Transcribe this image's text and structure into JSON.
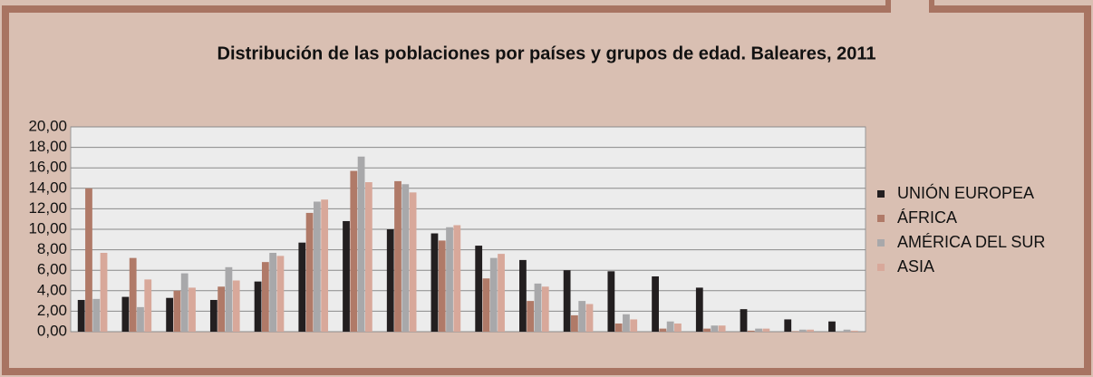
{
  "chart_data": {
    "type": "bar",
    "title": "Distribución de las poblaciones por países y grupos de edad. Baleares, 2011",
    "categories": [
      null,
      null,
      null,
      null,
      null,
      null,
      null,
      null,
      null,
      null,
      null,
      null,
      null,
      null,
      null,
      null,
      null,
      null
    ],
    "series": [
      {
        "name": "UNIÓN EUROPEA",
        "color": "#231f20",
        "values": [
          3.1,
          3.4,
          3.3,
          3.1,
          4.9,
          8.7,
          10.8,
          10.0,
          9.6,
          8.4,
          7.0,
          6.0,
          5.9,
          5.4,
          4.3,
          2.2,
          1.2,
          1.0
        ]
      },
      {
        "name": "ÁFRICA",
        "color": "#b07a68",
        "values": [
          14.0,
          7.2,
          4.0,
          4.4,
          6.8,
          11.6,
          15.7,
          14.7,
          8.9,
          5.2,
          3.0,
          1.6,
          0.8,
          0.3,
          0.3,
          0.1,
          0.05,
          0.0
        ]
      },
      {
        "name": "AMÉRICA DEL SUR",
        "color": "#a8a8aa",
        "values": [
          3.2,
          2.4,
          5.7,
          6.3,
          7.7,
          12.7,
          17.1,
          14.4,
          10.2,
          7.2,
          4.7,
          3.0,
          1.7,
          1.0,
          0.6,
          0.3,
          0.2,
          0.2
        ]
      },
      {
        "name": "ASIA",
        "color": "#d8a89a",
        "values": [
          7.7,
          5.1,
          4.3,
          5.0,
          7.4,
          12.9,
          14.6,
          13.6,
          10.4,
          7.6,
          4.4,
          2.7,
          1.2,
          0.8,
          0.6,
          0.3,
          0.2,
          0.1
        ]
      }
    ],
    "ylim": [
      0,
      20
    ],
    "yticks": [
      {
        "value": 0,
        "label": "0,00"
      },
      {
        "value": 2,
        "label": "2,00"
      },
      {
        "value": 4,
        "label": "4,00"
      },
      {
        "value": 6,
        "label": "6,00"
      },
      {
        "value": 8,
        "label": "8,00"
      },
      {
        "value": 10,
        "label": "10,00"
      },
      {
        "value": 12,
        "label": "12,00"
      },
      {
        "value": 14,
        "label": "14,00"
      },
      {
        "value": 16,
        "label": "16,00"
      },
      {
        "value": 18,
        "label": "18,00"
      },
      {
        "value": 20,
        "label": "20,00"
      }
    ],
    "grid": true,
    "legend": "right"
  }
}
